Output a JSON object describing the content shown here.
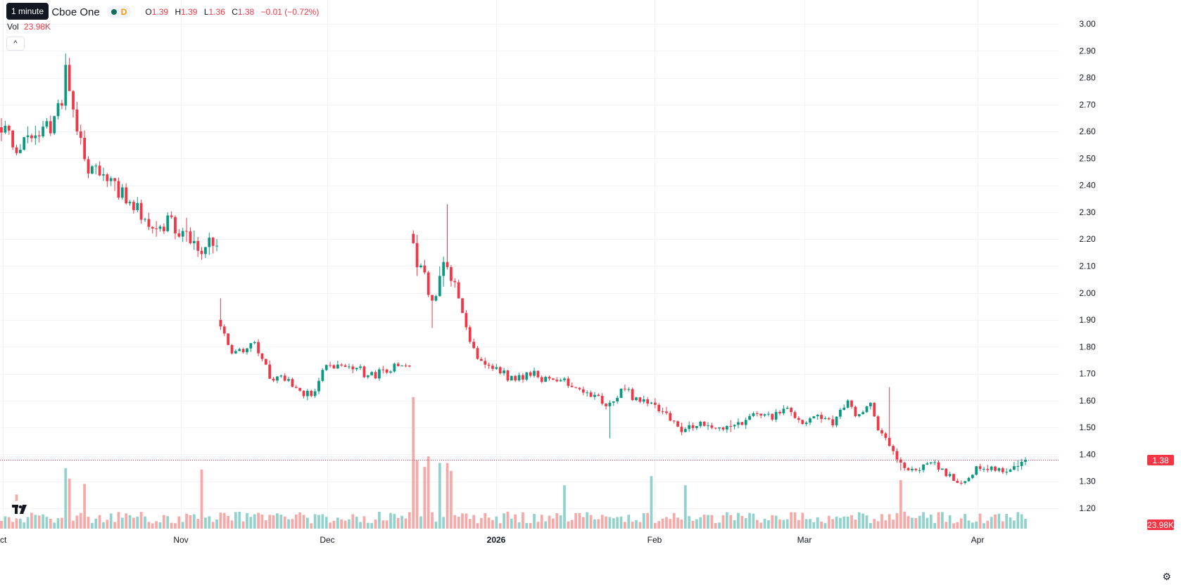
{
  "legend": {
    "symbol": "nc. · 4h · Cboe One",
    "tooltip": "1 minute",
    "d_badge": "D",
    "open_label": "O",
    "open": "1.39",
    "high_label": "H",
    "high": "1.39",
    "low_label": "L",
    "low": "1.36",
    "close_label": "C",
    "close": "1.38",
    "change": "−0.01 (−0.72%)"
  },
  "volume": {
    "label": "Vol",
    "value": "23.98K"
  },
  "last_price_badge": "1.38",
  "volume_badge": "23.98K",
  "colors": {
    "up": "#089981",
    "down": "#f23645",
    "up_vol": "#92d2cc",
    "down_vol": "#f7a9a7"
  },
  "icons": {
    "logo": "tradingview-logo-icon",
    "settings": "gear-icon",
    "collapse": "chevron-up-icon"
  },
  "chart_data": {
    "type": "candlestick",
    "timeframe": "4h",
    "price_axis": {
      "ticks": [
        "3.00",
        "2.90",
        "2.80",
        "2.70",
        "2.60",
        "2.50",
        "2.40",
        "2.30",
        "2.20",
        "2.10",
        "2.00",
        "1.90",
        "1.80",
        "1.70",
        "1.60",
        "1.50",
        "1.40",
        "1.30",
        "1.20"
      ],
      "range": [
        1.15,
        3.02
      ]
    },
    "time_axis": {
      "ticks": [
        "ct",
        "Nov",
        "Dec",
        "2026",
        "Feb",
        "Mar",
        "Apr"
      ]
    },
    "last_price": 1.38,
    "anchors": [
      [
        0,
        2.62
      ],
      [
        4,
        2.55
      ],
      [
        8,
        2.58
      ],
      [
        13,
        2.62
      ],
      [
        16,
        2.7
      ],
      [
        17,
        2.82
      ],
      [
        20,
        2.6
      ],
      [
        23,
        2.46
      ],
      [
        27,
        2.44
      ],
      [
        31,
        2.37
      ],
      [
        36,
        2.33
      ],
      [
        40,
        2.22
      ],
      [
        44,
        2.26
      ],
      [
        49,
        2.21
      ],
      [
        53,
        2.17
      ],
      [
        57,
        2.18
      ],
      [
        58,
        1.88
      ],
      [
        61,
        1.79
      ],
      [
        64,
        1.78
      ],
      [
        67,
        1.82
      ],
      [
        71,
        1.69
      ],
      [
        76,
        1.67
      ],
      [
        80,
        1.63
      ],
      [
        83,
        1.62
      ],
      [
        86,
        1.74
      ],
      [
        92,
        1.73
      ],
      [
        98,
        1.69
      ],
      [
        102,
        1.71
      ],
      [
        108,
        1.74
      ],
      [
        109,
        2.17
      ],
      [
        112,
        2.05
      ],
      [
        114,
        1.96
      ],
      [
        117,
        2.12
      ],
      [
        120,
        2.03
      ],
      [
        123,
        1.86
      ],
      [
        126,
        1.76
      ],
      [
        130,
        1.72
      ],
      [
        135,
        1.68
      ],
      [
        140,
        1.7
      ],
      [
        146,
        1.66
      ],
      [
        150,
        1.67
      ],
      [
        156,
        1.63
      ],
      [
        160,
        1.59
      ],
      [
        164,
        1.64
      ],
      [
        168,
        1.61
      ],
      [
        172,
        1.59
      ],
      [
        176,
        1.55
      ],
      [
        180,
        1.49
      ],
      [
        185,
        1.51
      ],
      [
        190,
        1.5
      ],
      [
        195,
        1.51
      ],
      [
        200,
        1.55
      ],
      [
        204,
        1.54
      ],
      [
        208,
        1.57
      ],
      [
        212,
        1.52
      ],
      [
        216,
        1.55
      ],
      [
        220,
        1.52
      ],
      [
        224,
        1.6
      ],
      [
        226,
        1.55
      ],
      [
        230,
        1.58
      ],
      [
        232,
        1.49
      ],
      [
        235,
        1.43
      ],
      [
        238,
        1.36
      ],
      [
        242,
        1.33
      ],
      [
        246,
        1.38
      ],
      [
        250,
        1.33
      ],
      [
        254,
        1.29
      ],
      [
        258,
        1.35
      ],
      [
        262,
        1.35
      ],
      [
        266,
        1.33
      ],
      [
        270,
        1.38
      ]
    ],
    "volume_spikes": {
      "4": 0.26,
      "17": 0.46,
      "18": 0.38,
      "22": 0.34,
      "53": 0.45,
      "109": 1.0,
      "110": 0.52,
      "112": 0.47,
      "113": 0.55,
      "116": 0.5,
      "118": 0.5,
      "119": 0.44,
      "149": 0.33,
      "172": 0.4,
      "181": 0.33,
      "238": 0.37
    }
  }
}
